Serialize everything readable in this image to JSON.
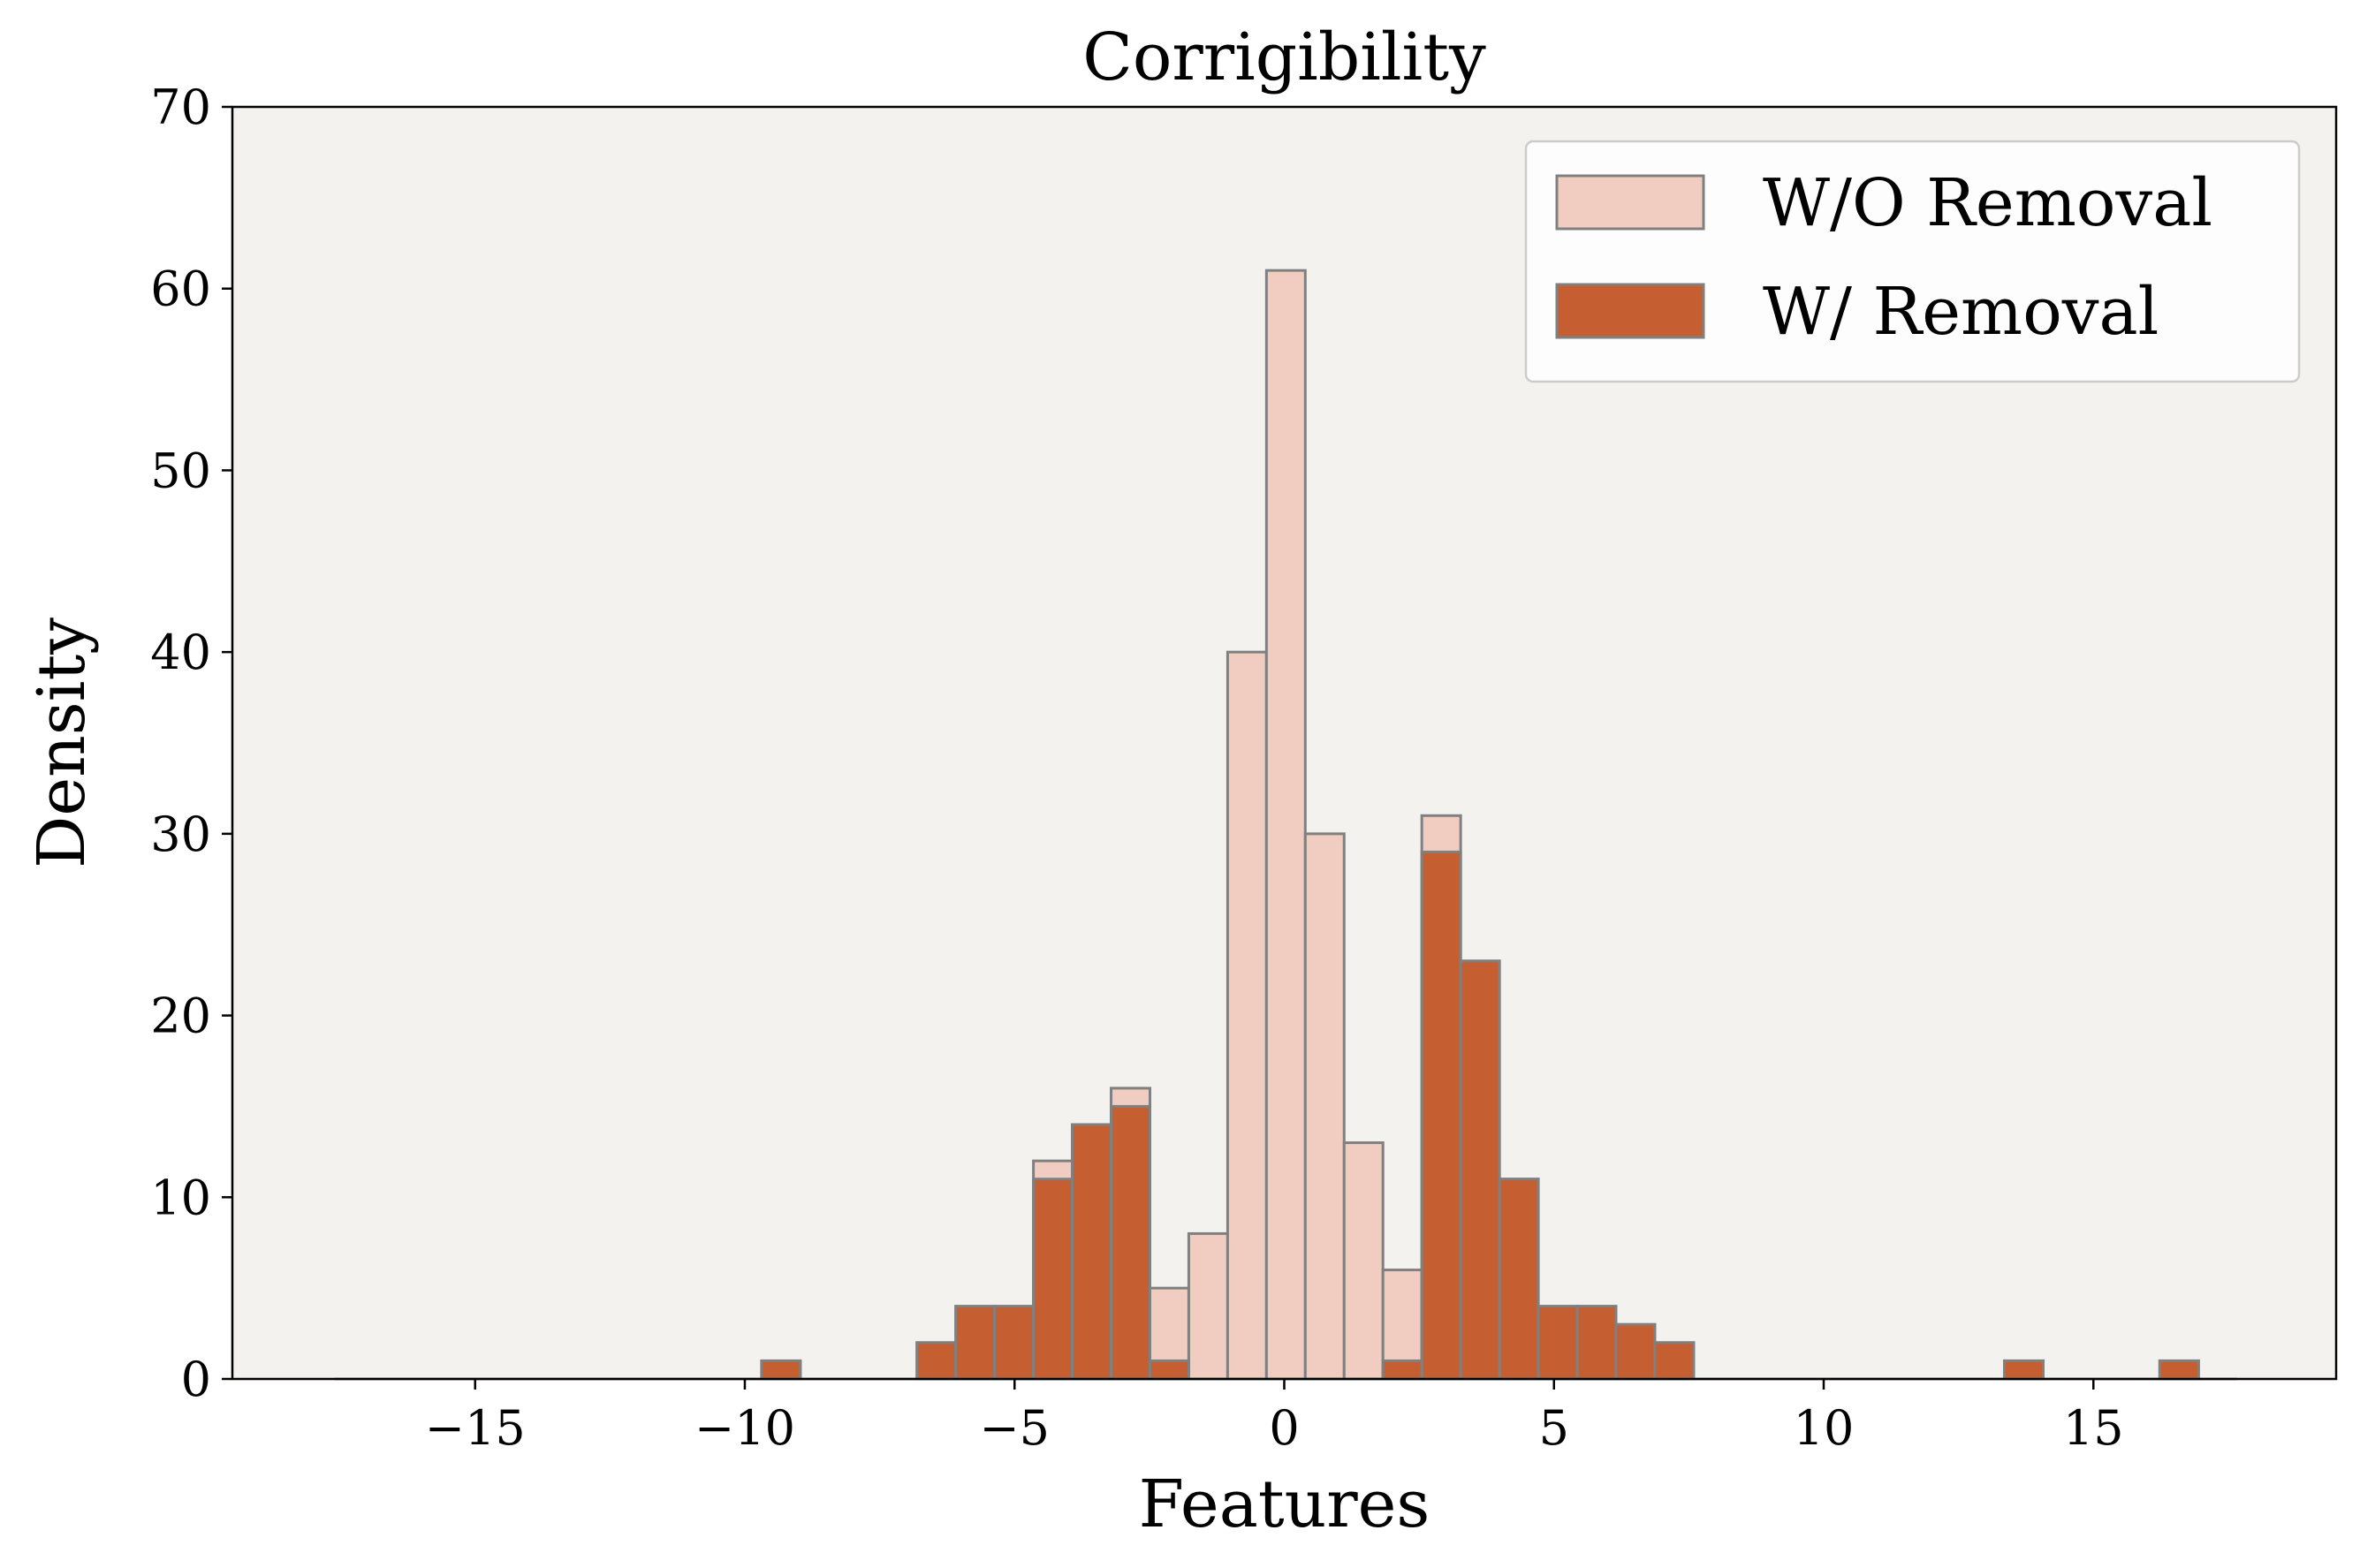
{
  "chart_data": {
    "type": "bar",
    "title": "Corrigibility",
    "xlabel": "Features",
    "ylabel": "Density",
    "xlim": [
      -19.5,
      19.5
    ],
    "ylim": [
      0,
      70
    ],
    "xticks": [
      -15,
      -10,
      -5,
      0,
      5,
      10,
      15
    ],
    "yticks": [
      0,
      10,
      20,
      30,
      40,
      50,
      60,
      70
    ],
    "bin_start": -17.61,
    "bin_width": 0.72,
    "legend_position": "top-right",
    "grid": false,
    "colors": {
      "background": "#f3f2ef",
      "edge": "#808080",
      "without_removal": "#f0cdc0",
      "with_removal": "#c55e30"
    },
    "series": [
      {
        "name": "W/O Removal",
        "values": [
          0,
          0,
          0,
          0,
          0,
          0,
          0,
          0,
          0,
          0,
          0,
          1,
          0,
          0,
          0,
          2,
          4,
          4,
          12,
          14,
          16,
          5,
          8,
          40,
          61,
          30,
          13,
          6,
          31,
          23,
          11,
          4,
          4,
          3,
          2,
          0,
          0,
          0,
          0,
          0,
          0,
          0,
          0,
          1,
          0,
          0,
          0,
          1,
          0
        ]
      },
      {
        "name": "W/ Removal",
        "values": [
          0,
          0,
          0,
          0,
          0,
          0,
          0,
          0,
          0,
          0,
          0,
          1,
          0,
          0,
          0,
          2,
          4,
          4,
          11,
          14,
          15,
          1,
          0,
          0,
          0,
          0,
          0,
          1,
          29,
          23,
          11,
          4,
          4,
          3,
          2,
          0,
          0,
          0,
          0,
          0,
          0,
          0,
          0,
          1,
          0,
          0,
          0,
          1,
          0
        ]
      }
    ]
  }
}
